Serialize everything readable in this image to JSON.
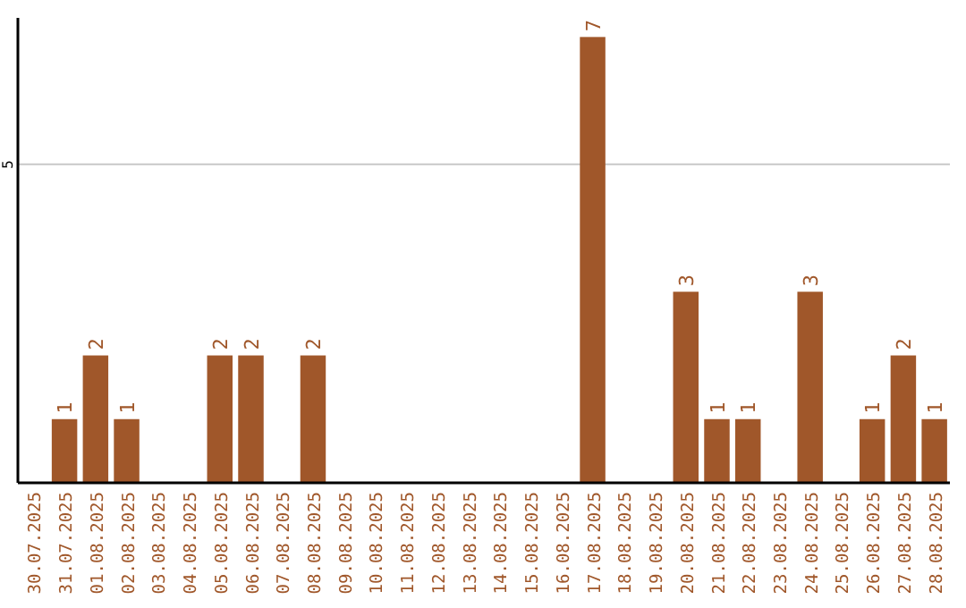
{
  "chart_data": {
    "type": "bar",
    "categories": [
      "30.07.2025",
      "31.07.2025",
      "01.08.2025",
      "02.08.2025",
      "03.08.2025",
      "04.08.2025",
      "05.08.2025",
      "06.08.2025",
      "07.08.2025",
      "08.08.2025",
      "09.08.2025",
      "10.08.2025",
      "11.08.2025",
      "12.08.2025",
      "13.08.2025",
      "14.08.2025",
      "15.08.2025",
      "16.08.2025",
      "17.08.2025",
      "18.08.2025",
      "19.08.2025",
      "20.08.2025",
      "21.08.2025",
      "22.08.2025",
      "23.08.2025",
      "24.08.2025",
      "25.08.2025",
      "26.08.2025",
      "27.08.2025",
      "28.08.2025"
    ],
    "values": [
      0,
      1,
      2,
      1,
      0,
      0,
      2,
      2,
      0,
      2,
      0,
      0,
      0,
      0,
      0,
      0,
      0,
      0,
      7,
      0,
      0,
      3,
      1,
      1,
      0,
      3,
      0,
      1,
      2,
      1
    ],
    "value_labels": [
      null,
      "1",
      "2",
      "1",
      null,
      null,
      "2",
      "2",
      null,
      "2",
      null,
      null,
      null,
      null,
      null,
      null,
      null,
      null,
      "7",
      null,
      null,
      "3",
      "1",
      "1",
      null,
      "3",
      null,
      "1",
      "2",
      "1"
    ],
    "color": "#a0572a",
    "ylim": [
      0,
      7.3
    ],
    "yticks": [
      5
    ],
    "grid": "y"
  }
}
